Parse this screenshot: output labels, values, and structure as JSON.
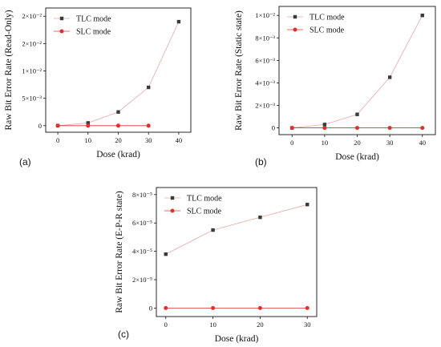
{
  "chart_data": [
    {
      "type": "line",
      "panel_label": "(a)",
      "xlabel": "Dose (krad)",
      "ylabel": "Raw Bit Error Rate (Read-Only)",
      "x": [
        0,
        10,
        20,
        30,
        40
      ],
      "xticks": [
        "0",
        "10",
        "20",
        "30",
        "40"
      ],
      "xlim": [
        -4,
        44
      ],
      "yticks": [
        {
          "value": 0,
          "label": "0"
        },
        {
          "value": 0.005,
          "label": "5×10⁻³"
        },
        {
          "value": 0.01,
          "label": "1×10⁻²"
        },
        {
          "value": 0.015,
          "label": "2×10⁻²"
        },
        {
          "value": 0.02,
          "label": "2×10⁻²"
        }
      ],
      "ylim": [
        -0.0012,
        0.0215
      ],
      "legend_position": "top-left",
      "series": [
        {
          "name": "TLC mode",
          "values": [
            0,
            0.0005,
            0.0025,
            0.007,
            0.019
          ],
          "color": "#3a3a3a",
          "line_color": "#e2a9a9",
          "marker": "square"
        },
        {
          "name": "SLC mode",
          "values": [
            0,
            0,
            0,
            0,
            null
          ],
          "color": "#e0302e",
          "line_color": "#e0302e",
          "marker": "circle"
        }
      ]
    },
    {
      "type": "line",
      "panel_label": "(b)",
      "xlabel": "Dose (krad)",
      "ylabel": "Raw Bit Error Rate (Static state)",
      "x": [
        0,
        10,
        20,
        30,
        40
      ],
      "xticks": [
        "0",
        "10",
        "20",
        "30",
        "40"
      ],
      "xlim": [
        -4,
        44
      ],
      "yticks": [
        {
          "value": 0,
          "label": "0"
        },
        {
          "value": 0.002,
          "label": "2×10⁻³"
        },
        {
          "value": 0.004,
          "label": "4×10⁻³"
        },
        {
          "value": 0.006,
          "label": "6×10⁻³"
        },
        {
          "value": 0.008,
          "label": "8×10⁻³"
        },
        {
          "value": 0.01,
          "label": "1×10⁻²"
        }
      ],
      "ylim": [
        -0.0006,
        0.0108
      ],
      "legend_position": "top-left",
      "series": [
        {
          "name": "TLC mode",
          "values": [
            0,
            0.0003,
            0.0012,
            0.0045,
            0.01
          ],
          "color": "#3a3a3a",
          "line_color": "#e2a9a9",
          "marker": "square"
        },
        {
          "name": "SLC mode",
          "values": [
            0,
            0,
            0,
            0,
            0
          ],
          "color": "#e0302e",
          "line_color": "#e0302e",
          "marker": "circle"
        }
      ]
    },
    {
      "type": "line",
      "panel_label": "(c)",
      "xlabel": "Dose (krad)",
      "ylabel": "Raw Bit Error Rate (E-P-R state)",
      "x": [
        0,
        10,
        20,
        30
      ],
      "xticks": [
        "0",
        "10",
        "20",
        "30"
      ],
      "xlim": [
        -2,
        32
      ],
      "yticks": [
        {
          "value": 0,
          "label": "0"
        },
        {
          "value": 2e-05,
          "label": "2×10⁻⁵"
        },
        {
          "value": 4e-05,
          "label": "4×10⁻⁵"
        },
        {
          "value": 6e-05,
          "label": "6×10⁻⁵"
        },
        {
          "value": 8e-05,
          "label": "8×10⁻⁵"
        }
      ],
      "ylim": [
        -6e-06,
        8.5e-05
      ],
      "legend_position": "top-left",
      "series": [
        {
          "name": "TLC mode",
          "values": [
            3.8e-05,
            5.5e-05,
            6.4e-05,
            7.3e-05
          ],
          "color": "#3a3a3a",
          "line_color": "#e2a9a9",
          "marker": "square"
        },
        {
          "name": "SLC mode",
          "values": [
            0,
            0,
            0,
            0
          ],
          "color": "#e0302e",
          "line_color": "#e0302e",
          "marker": "circle"
        }
      ]
    }
  ]
}
